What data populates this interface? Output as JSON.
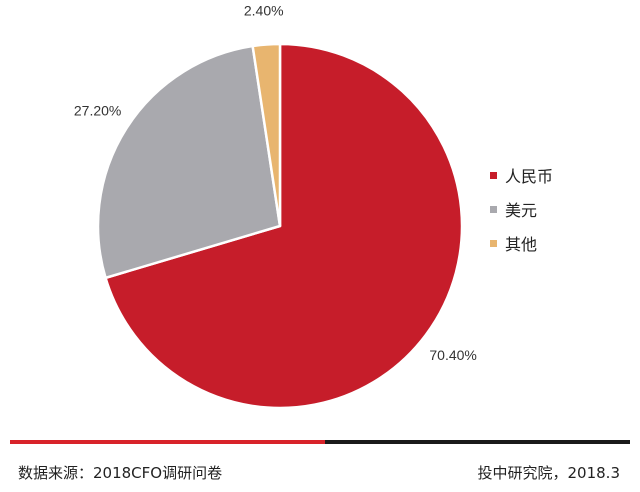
{
  "chart_data": {
    "type": "pie",
    "categories": [
      "人民币",
      "美元",
      "其他"
    ],
    "values": [
      70.4,
      27.2,
      2.4
    ],
    "labels": [
      "70.40%",
      "27.20%",
      "2.40%"
    ],
    "colors": [
      "#c61d2a",
      "#a9a9ae",
      "#e8b56f"
    ],
    "legend_position": "right"
  },
  "legend": [
    {
      "label": "人民币",
      "color": "#c61d2a"
    },
    {
      "label": "美元",
      "color": "#a9a9ae"
    },
    {
      "label": "其他",
      "color": "#e8b56f"
    }
  ],
  "footer": {
    "source": "数据来源：2018CFO调研问卷",
    "credit": "投中研究院，2018.3"
  },
  "rule_colors": {
    "left": "#d8232a",
    "right": "#1a1a1a"
  }
}
